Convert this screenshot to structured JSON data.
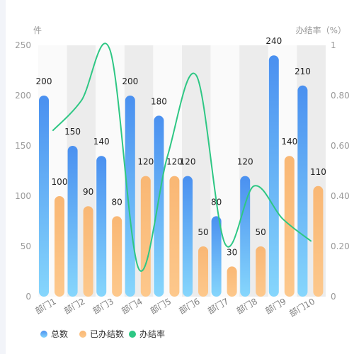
{
  "chart_data": {
    "type": "bar",
    "left_axis_title": "件",
    "right_axis_title": "办结率（%）",
    "categories": [
      "部门1",
      "部门2",
      "部门3",
      "部门4",
      "部门5",
      "部门6",
      "部门7",
      "部门8",
      "部门9",
      "部门10"
    ],
    "series": [
      {
        "name": "总数",
        "type": "bar",
        "axis": "left",
        "values": [
          200,
          150,
          140,
          200,
          180,
          120,
          80,
          120,
          240,
          210
        ],
        "color_top": "#4a90f0",
        "color_bottom": "#86d6fc"
      },
      {
        "name": "已办结数",
        "type": "bar",
        "axis": "left",
        "values": [
          100,
          90,
          80,
          120,
          120,
          50,
          30,
          50,
          140,
          110
        ],
        "color_top": "#f9b774",
        "color_bottom": "#fdc88c"
      },
      {
        "name": "办结率",
        "type": "line",
        "axis": "right",
        "smooth": true,
        "values": [
          0.66,
          0.78,
          0.98,
          0.11,
          0.56,
          0.88,
          0.21,
          0.44,
          0.31,
          0.22
        ],
        "color": "#2ec784"
      }
    ],
    "left_axis": {
      "min": 0,
      "max": 250,
      "ticks": [
        0,
        50,
        100,
        150,
        200,
        250
      ]
    },
    "right_axis": {
      "min": 0,
      "max": 1,
      "ticks": [
        "0",
        "0.20",
        "0.40",
        "0.60",
        "0.80",
        "1"
      ]
    },
    "legend_position": "bottom-left",
    "band_colors": [
      "#fafafa",
      "#ececec"
    ]
  }
}
